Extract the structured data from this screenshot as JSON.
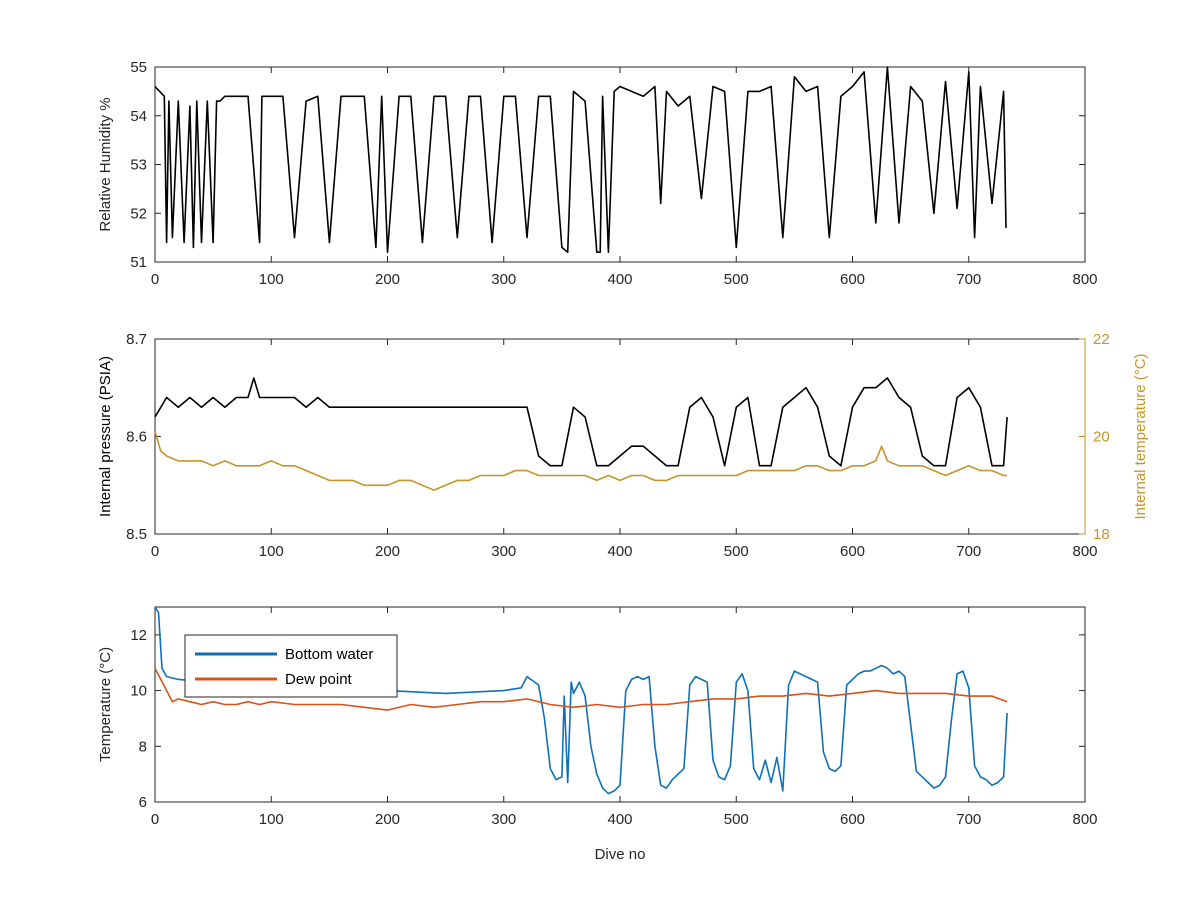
{
  "chart_data": [
    {
      "type": "line",
      "ylabel": "Relative Humidity %",
      "xlim": [
        0,
        800
      ],
      "ylim": [
        51,
        55
      ],
      "xticks": [
        0,
        100,
        200,
        300,
        400,
        500,
        600,
        700,
        800
      ],
      "yticks": [
        51,
        52,
        53,
        54,
        55
      ],
      "colors": {
        "series": "#000000"
      },
      "series": [
        {
          "x": [
            0,
            8,
            10,
            12,
            15,
            20,
            25,
            30,
            33,
            36,
            40,
            45,
            50,
            53,
            56,
            60,
            70,
            80,
            90,
            92,
            100,
            110,
            120,
            130,
            140,
            150,
            160,
            170,
            180,
            190,
            195,
            200,
            210,
            220,
            230,
            240,
            250,
            260,
            270,
            280,
            290,
            300,
            310,
            320,
            330,
            340,
            350,
            355,
            360,
            370,
            380,
            383,
            385,
            390,
            395,
            400,
            410,
            420,
            430,
            435,
            440,
            450,
            460,
            470,
            480,
            490,
            500,
            510,
            520,
            530,
            540,
            550,
            560,
            570,
            580,
            590,
            600,
            610,
            620,
            630,
            640,
            650,
            660,
            670,
            680,
            690,
            700,
            705,
            710,
            720,
            730,
            732
          ],
          "values": [
            54.6,
            54.4,
            51.4,
            54.3,
            51.5,
            54.3,
            51.4,
            54.2,
            51.3,
            54.3,
            51.4,
            54.3,
            51.4,
            54.3,
            54.3,
            54.4,
            54.4,
            54.4,
            51.4,
            54.4,
            54.4,
            54.4,
            51.5,
            54.3,
            54.4,
            51.4,
            54.4,
            54.4,
            54.4,
            51.3,
            54.4,
            51.2,
            54.4,
            54.4,
            51.4,
            54.4,
            54.4,
            51.5,
            54.4,
            54.4,
            51.4,
            54.4,
            54.4,
            51.5,
            54.4,
            54.4,
            51.3,
            51.2,
            54.5,
            54.3,
            51.2,
            51.2,
            54.4,
            51.2,
            54.5,
            54.6,
            54.5,
            54.4,
            54.6,
            52.2,
            54.5,
            54.2,
            54.4,
            52.3,
            54.6,
            54.5,
            51.3,
            54.5,
            54.5,
            54.6,
            51.5,
            54.8,
            54.5,
            54.6,
            51.5,
            54.4,
            54.6,
            54.9,
            51.8,
            55.0,
            51.8,
            54.6,
            54.3,
            52.0,
            54.7,
            52.1,
            54.9,
            51.5,
            54.6,
            52.2,
            54.5,
            51.7
          ]
        }
      ]
    },
    {
      "type": "line",
      "ylabel": "Internal pressure (PSIA)",
      "y2label": "Internal temperature (°C)",
      "xlim": [
        0,
        800
      ],
      "ylim": [
        8.5,
        8.7
      ],
      "y2lim": [
        18,
        22
      ],
      "xticks": [
        0,
        100,
        200,
        300,
        400,
        500,
        600,
        700,
        800
      ],
      "yticks": [
        8.5,
        8.6,
        8.7
      ],
      "y2ticks": [
        18,
        20,
        22
      ],
      "colors": {
        "pressure": "#000000",
        "temperature": "#c5952a",
        "right_axis": "#c5952a"
      },
      "series": [
        {
          "axis": "left",
          "x": [
            0,
            10,
            20,
            30,
            40,
            50,
            60,
            70,
            80,
            85,
            90,
            100,
            110,
            120,
            130,
            140,
            150,
            160,
            170,
            180,
            190,
            200,
            210,
            220,
            230,
            240,
            250,
            260,
            270,
            280,
            290,
            300,
            310,
            320,
            330,
            340,
            350,
            360,
            370,
            380,
            390,
            400,
            410,
            420,
            430,
            440,
            450,
            460,
            470,
            480,
            490,
            500,
            510,
            520,
            530,
            540,
            550,
            560,
            570,
            580,
            590,
            600,
            610,
            620,
            630,
            640,
            650,
            660,
            670,
            680,
            690,
            700,
            710,
            720,
            730,
            733
          ],
          "values": [
            8.62,
            8.64,
            8.63,
            8.64,
            8.63,
            8.64,
            8.63,
            8.64,
            8.64,
            8.66,
            8.64,
            8.64,
            8.64,
            8.64,
            8.63,
            8.64,
            8.63,
            8.63,
            8.63,
            8.63,
            8.63,
            8.63,
            8.63,
            8.63,
            8.63,
            8.63,
            8.63,
            8.63,
            8.63,
            8.63,
            8.63,
            8.63,
            8.63,
            8.63,
            8.58,
            8.57,
            8.57,
            8.63,
            8.62,
            8.57,
            8.57,
            8.58,
            8.59,
            8.59,
            8.58,
            8.57,
            8.57,
            8.63,
            8.64,
            8.62,
            8.57,
            8.63,
            8.64,
            8.57,
            8.57,
            8.63,
            8.64,
            8.65,
            8.63,
            8.58,
            8.57,
            8.63,
            8.65,
            8.65,
            8.66,
            8.64,
            8.63,
            8.58,
            8.57,
            8.57,
            8.64,
            8.65,
            8.63,
            8.57,
            8.57,
            8.62
          ]
        },
        {
          "axis": "right",
          "x": [
            0,
            5,
            10,
            20,
            30,
            40,
            50,
            60,
            70,
            80,
            90,
            100,
            110,
            120,
            130,
            140,
            150,
            160,
            170,
            180,
            190,
            200,
            210,
            220,
            230,
            240,
            250,
            260,
            270,
            280,
            290,
            300,
            310,
            320,
            330,
            340,
            350,
            360,
            370,
            380,
            390,
            400,
            410,
            420,
            430,
            440,
            450,
            460,
            470,
            480,
            490,
            500,
            510,
            520,
            530,
            540,
            550,
            560,
            570,
            580,
            590,
            600,
            610,
            620,
            625,
            630,
            640,
            650,
            660,
            670,
            680,
            690,
            700,
            710,
            720,
            730,
            733
          ],
          "values": [
            20.1,
            19.7,
            19.6,
            19.5,
            19.5,
            19.5,
            19.4,
            19.5,
            19.4,
            19.4,
            19.4,
            19.5,
            19.4,
            19.4,
            19.3,
            19.2,
            19.1,
            19.1,
            19.1,
            19.0,
            19.0,
            19.0,
            19.1,
            19.1,
            19.0,
            18.9,
            19.0,
            19.1,
            19.1,
            19.2,
            19.2,
            19.2,
            19.3,
            19.3,
            19.2,
            19.2,
            19.2,
            19.2,
            19.2,
            19.1,
            19.2,
            19.1,
            19.2,
            19.2,
            19.1,
            19.1,
            19.2,
            19.2,
            19.2,
            19.2,
            19.2,
            19.2,
            19.3,
            19.3,
            19.3,
            19.3,
            19.3,
            19.4,
            19.4,
            19.3,
            19.3,
            19.4,
            19.4,
            19.5,
            19.8,
            19.5,
            19.4,
            19.4,
            19.4,
            19.3,
            19.2,
            19.3,
            19.4,
            19.3,
            19.3,
            19.2,
            19.2
          ]
        }
      ]
    },
    {
      "type": "line",
      "xlabel": "Dive no",
      "ylabel": "Temperature (°C)",
      "xlim": [
        0,
        800
      ],
      "ylim": [
        6,
        13
      ],
      "xticks": [
        0,
        100,
        200,
        300,
        400,
        500,
        600,
        700,
        800
      ],
      "yticks": [
        6,
        8,
        10,
        12
      ],
      "legend_position": "top-left",
      "series": [
        {
          "name": "Bottom water",
          "color": "#0f71b5",
          "x": [
            0,
            3,
            6,
            10,
            20,
            50,
            100,
            150,
            200,
            250,
            300,
            315,
            320,
            330,
            335,
            340,
            345,
            350,
            352,
            355,
            358,
            360,
            365,
            370,
            375,
            380,
            385,
            390,
            395,
            400,
            405,
            410,
            415,
            420,
            425,
            430,
            435,
            440,
            445,
            450,
            455,
            460,
            465,
            470,
            475,
            480,
            485,
            490,
            495,
            500,
            505,
            510,
            515,
            520,
            525,
            530,
            535,
            540,
            545,
            550,
            555,
            560,
            565,
            570,
            575,
            580,
            585,
            590,
            595,
            600,
            605,
            610,
            615,
            620,
            625,
            630,
            635,
            640,
            645,
            650,
            655,
            660,
            665,
            670,
            675,
            680,
            685,
            690,
            695,
            700,
            705,
            710,
            715,
            720,
            725,
            730,
            733
          ],
          "values": [
            13.0,
            12.8,
            10.8,
            10.5,
            10.4,
            10.3,
            10.2,
            10.1,
            10.0,
            9.9,
            10.0,
            10.1,
            10.5,
            10.2,
            9.0,
            7.2,
            6.8,
            6.9,
            9.8,
            6.7,
            10.3,
            9.9,
            10.3,
            9.8,
            8.0,
            7.0,
            6.5,
            6.3,
            6.4,
            6.6,
            10.0,
            10.4,
            10.5,
            10.4,
            10.5,
            8.0,
            6.6,
            6.5,
            6.8,
            7.0,
            7.2,
            10.2,
            10.5,
            10.4,
            10.3,
            7.5,
            6.9,
            6.8,
            7.3,
            10.3,
            10.6,
            10.0,
            7.2,
            6.8,
            7.5,
            6.7,
            7.6,
            6.4,
            10.2,
            10.7,
            10.6,
            10.5,
            10.4,
            10.3,
            7.8,
            7.2,
            7.1,
            7.3,
            10.2,
            10.4,
            10.6,
            10.7,
            10.7,
            10.8,
            10.9,
            10.8,
            10.6,
            10.7,
            10.5,
            8.8,
            7.1,
            6.9,
            6.7,
            6.5,
            6.6,
            6.9,
            8.9,
            10.6,
            10.7,
            10.1,
            7.3,
            6.9,
            6.8,
            6.6,
            6.7,
            6.9,
            9.2
          ]
        },
        {
          "name": "Dew point",
          "color": "#d95319",
          "x": [
            0,
            5,
            10,
            15,
            20,
            30,
            40,
            50,
            60,
            70,
            80,
            90,
            100,
            120,
            140,
            160,
            180,
            200,
            220,
            240,
            260,
            280,
            300,
            320,
            340,
            360,
            380,
            400,
            420,
            440,
            460,
            480,
            500,
            520,
            540,
            560,
            580,
            600,
            620,
            640,
            660,
            680,
            700,
            720,
            733
          ],
          "values": [
            10.8,
            10.4,
            10.0,
            9.6,
            9.7,
            9.6,
            9.5,
            9.6,
            9.5,
            9.5,
            9.6,
            9.5,
            9.6,
            9.5,
            9.5,
            9.5,
            9.4,
            9.3,
            9.5,
            9.4,
            9.5,
            9.6,
            9.6,
            9.7,
            9.5,
            9.4,
            9.5,
            9.4,
            9.5,
            9.5,
            9.6,
            9.7,
            9.7,
            9.8,
            9.8,
            9.9,
            9.8,
            9.9,
            10.0,
            9.9,
            9.9,
            9.9,
            9.8,
            9.8,
            9.6
          ]
        }
      ]
    }
  ]
}
